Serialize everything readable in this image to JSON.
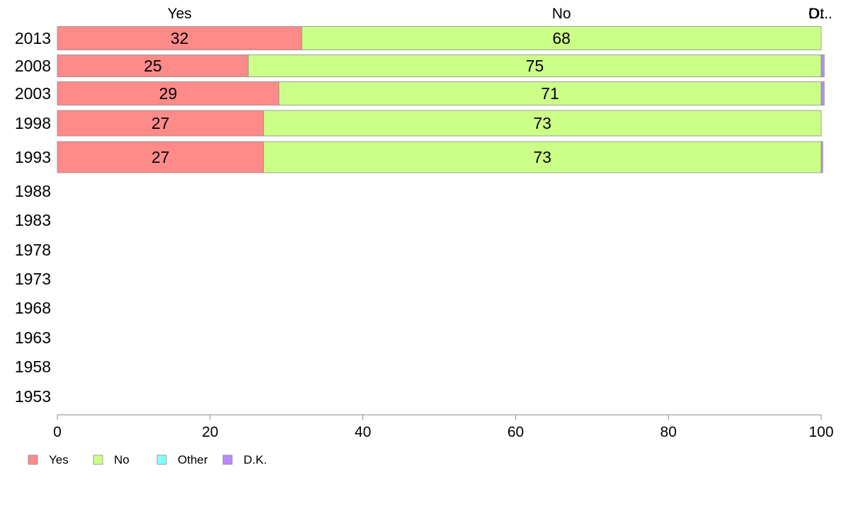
{
  "chart_data": {
    "type": "bar",
    "orientation": "horizontal",
    "stacked": true,
    "categories": [
      "2013",
      "2008",
      "2003",
      "1998",
      "1993",
      "1988",
      "1983",
      "1978",
      "1973",
      "1968",
      "1963",
      "1958",
      "1953"
    ],
    "series": [
      {
        "name": "Yes",
        "color": "#ff8a8a",
        "values": [
          32,
          25,
          29,
          27,
          27,
          null,
          null,
          null,
          null,
          null,
          null,
          null,
          null
        ]
      },
      {
        "name": "No",
        "color": "#ccff88",
        "values": [
          68,
          75,
          71,
          73,
          73,
          null,
          null,
          null,
          null,
          null,
          null,
          null,
          null
        ]
      },
      {
        "name": "Other",
        "color": "#88ffff",
        "values": [
          0,
          0,
          0,
          0,
          0,
          null,
          null,
          null,
          null,
          null,
          null,
          null,
          null
        ]
      },
      {
        "name": "D.K.",
        "color": "#bb88ff",
        "values": [
          0,
          0.4,
          0.4,
          0,
          0.2,
          null,
          null,
          null,
          null,
          null,
          null,
          null,
          null
        ]
      }
    ],
    "bar_labels": [
      "32",
      "68",
      "25",
      "75",
      "29",
      "71",
      "27",
      "73",
      "27",
      "73"
    ],
    "column_headers": [
      "Yes",
      "No",
      "D.",
      "Ot.."
    ],
    "xlim": [
      0,
      100
    ],
    "xticks": [
      0,
      20,
      40,
      60,
      80,
      100
    ],
    "legend": {
      "position": "bottom-left",
      "entries": [
        "Yes",
        "No",
        "Other",
        "D.K."
      ]
    },
    "grid": false
  }
}
